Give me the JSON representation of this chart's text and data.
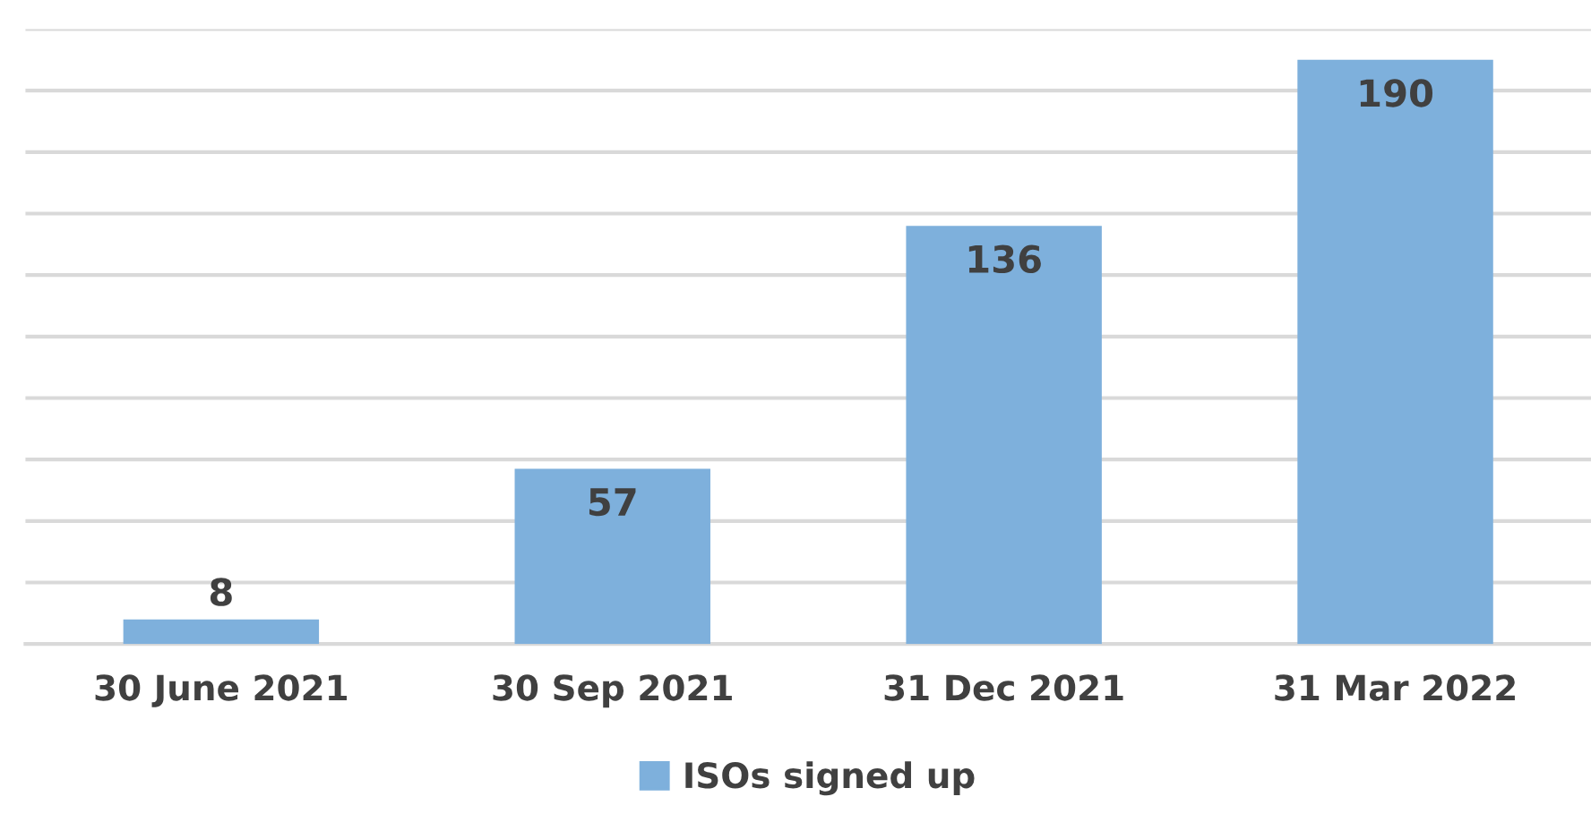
{
  "chart_data": {
    "type": "bar",
    "categories": [
      "30 June 2021",
      "30 Sep 2021",
      "31 Dec 2021",
      "31 Mar 2022"
    ],
    "series": [
      {
        "name": "ISOs signed up",
        "color": "#7eb0dc",
        "values": [
          8,
          57,
          136,
          190
        ]
      }
    ],
    "ylim": [
      0,
      200
    ],
    "yticks": [
      {
        "value": 0,
        "label": null
      },
      {
        "value": 20,
        "label": null
      },
      {
        "value": 40,
        "label": null
      },
      {
        "value": 60,
        "label": null
      },
      {
        "value": 80,
        "label": null
      },
      {
        "value": 100,
        "label": null
      },
      {
        "value": 120,
        "label": null
      },
      {
        "value": 140,
        "label": null
      },
      {
        "value": 160,
        "label": null
      },
      {
        "value": 180,
        "label": null
      },
      {
        "value": 200,
        "label": null
      }
    ],
    "tick_labels": "x",
    "grid": "y",
    "legend": "bottom",
    "data_labels": true
  }
}
